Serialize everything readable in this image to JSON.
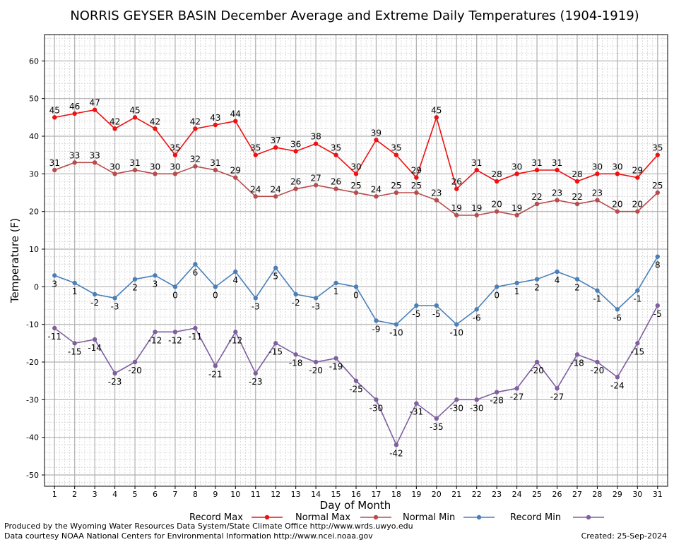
{
  "chart_data": {
    "type": "line",
    "title": "NORRIS GEYSER BASIN December Average and Extreme Daily Temperatures (1904-1919)",
    "xlabel": "Day of Month",
    "ylabel": "Temperature (F)",
    "x": [
      1,
      2,
      3,
      4,
      5,
      6,
      7,
      8,
      9,
      10,
      11,
      12,
      13,
      14,
      15,
      16,
      17,
      18,
      19,
      20,
      21,
      22,
      23,
      24,
      25,
      26,
      27,
      28,
      29,
      30,
      31
    ],
    "xlim": [
      0.5,
      31.5
    ],
    "ylim": [
      -53,
      67
    ],
    "yticks": [
      60,
      50,
      40,
      30,
      20,
      10,
      0,
      -10,
      -20,
      -30,
      -40,
      -50
    ],
    "grid": true,
    "legend_position": "bottom",
    "series": [
      {
        "name": "Record Max",
        "color": "#ee1111",
        "values": [
          45,
          46,
          47,
          42,
          45,
          42,
          35,
          42,
          43,
          44,
          35,
          37,
          36,
          38,
          35,
          30,
          39,
          35,
          29,
          45,
          26,
          31,
          28,
          30,
          31,
          31,
          28,
          30,
          30,
          29,
          35
        ]
      },
      {
        "name": "Normal Max",
        "color": "#b84c4c",
        "values": [
          31,
          33,
          33,
          30,
          31,
          30,
          30,
          32,
          31,
          29,
          24,
          24,
          26,
          27,
          26,
          25,
          24,
          25,
          25,
          23,
          19,
          19,
          20,
          19,
          22,
          23,
          22,
          23,
          20,
          20,
          25
        ]
      },
      {
        "name": "Normal Min",
        "color": "#4a7fb8",
        "values": [
          3,
          1,
          -2,
          -3,
          2,
          3,
          0,
          6,
          0,
          4,
          -3,
          5,
          -2,
          -3,
          1,
          0,
          -9,
          -10,
          -5,
          -5,
          -10,
          -6,
          0,
          1,
          2,
          4,
          2,
          -1,
          -6,
          -1,
          8
        ]
      },
      {
        "name": "Record Min",
        "color": "#7f5f9f",
        "values": [
          -11,
          -15,
          -14,
          -23,
          -20,
          -12,
          -12,
          -11,
          -21,
          -12,
          -23,
          -15,
          -18,
          -20,
          -19,
          -25,
          -30,
          -42,
          -31,
          -35,
          -30,
          -30,
          -28,
          -27,
          -20,
          -27,
          -18,
          -20,
          -24,
          -15,
          -5
        ]
      }
    ]
  },
  "footer": {
    "produced_by": "Produced by the Wyoming Water Resources Data System/State Climate Office http://www.wrds.uwyo.edu",
    "courtesy": "Data courtesy NOAA National Centers for Environmental Information http://www.ncei.noaa.gov",
    "created": "Created:  25-Sep-2024"
  }
}
